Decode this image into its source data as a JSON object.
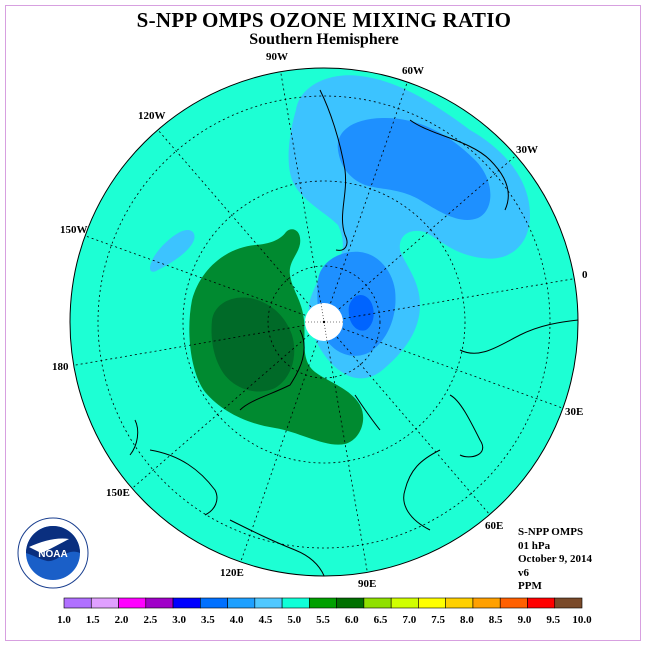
{
  "title": "S-NPP OMPS OZONE MIXING RATIO",
  "subtitle": "Southern Hemisphere",
  "longitude_labels": {
    "w90": "90W",
    "w60": "60W",
    "w120": "120W",
    "w30": "30W",
    "w150": "150W",
    "zero": "0",
    "deg180": "180",
    "e30": "30E",
    "e150": "150E",
    "e60": "60E",
    "e120": "120E",
    "e90": "90E"
  },
  "info": {
    "instrument": "S-NPP OMPS",
    "level": "01 hPa",
    "date": "October 9, 2014",
    "version": "v6",
    "units": "PPM"
  },
  "logo_text": "NOAA",
  "colorbar": {
    "ticks": [
      "1.0",
      "1.5",
      "2.0",
      "2.5",
      "3.0",
      "3.5",
      "4.0",
      "4.5",
      "5.0",
      "5.5",
      "6.0",
      "6.5",
      "7.0",
      "7.5",
      "8.0",
      "8.5",
      "9.0",
      "9.5",
      "10.0"
    ],
    "colors": [
      "#b070ff",
      "#e0a0ff",
      "#ff00ff",
      "#a000c8",
      "#0000ff",
      "#0070ff",
      "#1ea0ff",
      "#50c8ff",
      "#10ffd8",
      "#00a000",
      "#007000",
      "#90e000",
      "#d0ff00",
      "#ffff00",
      "#ffd000",
      "#ffa000",
      "#ff6000",
      "#ff0000",
      "#7a4a2a"
    ]
  },
  "colors": {
    "background_level": "#1dffd4",
    "blue_light": "#3cc3ff",
    "blue_mid": "#1e90ff",
    "blue_dark": "#0064ff",
    "green_mid": "#008a30",
    "green_dark": "#006a28",
    "pole_cap": "#ffffff"
  }
}
